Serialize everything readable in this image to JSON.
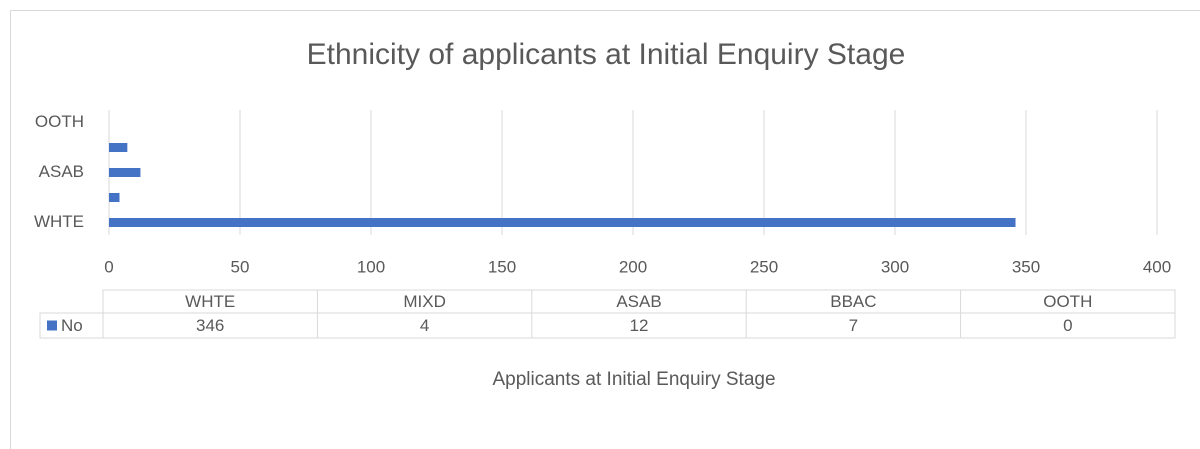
{
  "chart_data": {
    "type": "bar",
    "orientation": "horizontal",
    "title": "Ethnicity of applicants at Initial Enquiry Stage",
    "x_label": "Applicants at Initial Enquiry Stage",
    "categories": [
      "WHTE",
      "MIXD",
      "ASAB",
      "BBAC",
      "OOTH"
    ],
    "category_label_interval": 2,
    "series": [
      {
        "name": "No",
        "color": "#4472c4",
        "values": [
          346,
          4,
          12,
          7,
          0
        ]
      }
    ],
    "xlim": [
      0,
      400
    ],
    "xticks": [
      0,
      50,
      100,
      150,
      200,
      250,
      300,
      350,
      400
    ],
    "grid": true,
    "data_table": true
  }
}
